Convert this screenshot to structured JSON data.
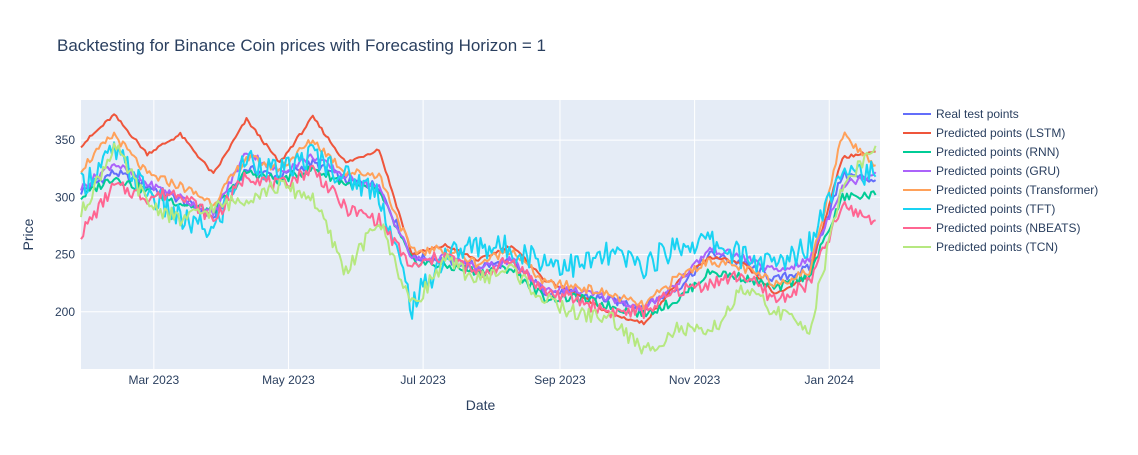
{
  "chart_data": {
    "type": "line",
    "title": "Backtesting for Binance Coin prices with Forecasting Horizon = 1",
    "xlabel": "Date",
    "ylabel": "Price",
    "x_range": [
      "2023-01-27",
      "2024-01-24"
    ],
    "ylim": [
      150,
      385
    ],
    "x_ticks": [
      {
        "date": "2023-03-01",
        "label": "Mar 2023"
      },
      {
        "date": "2023-05-01",
        "label": "May 2023"
      },
      {
        "date": "2023-07-01",
        "label": "Jul 2023"
      },
      {
        "date": "2023-09-01",
        "label": "Sep 2023"
      },
      {
        "date": "2023-11-01",
        "label": "Nov 2023"
      },
      {
        "date": "2024-01-01",
        "label": "Jan 2024"
      }
    ],
    "y_ticks": [
      200,
      250,
      300,
      350
    ],
    "grid": true,
    "legend_position": "right",
    "x": [
      "2023-01-27",
      "2023-02-11",
      "2023-02-26",
      "2023-03-13",
      "2023-03-28",
      "2023-04-12",
      "2023-04-27",
      "2023-05-12",
      "2023-05-27",
      "2023-06-11",
      "2023-06-26",
      "2023-07-11",
      "2023-07-26",
      "2023-08-10",
      "2023-08-25",
      "2023-09-09",
      "2023-09-24",
      "2023-10-09",
      "2023-10-24",
      "2023-11-08",
      "2023-11-23",
      "2023-12-08",
      "2023-12-23",
      "2024-01-07",
      "2024-01-22"
    ],
    "series": [
      {
        "name": "Real test points",
        "color": "#636efa",
        "values": [
          305,
          322,
          310,
          298,
          282,
          325,
          318,
          330,
          315,
          310,
          248,
          245,
          240,
          243,
          218,
          215,
          210,
          205,
          220,
          250,
          242,
          228,
          238,
          320,
          315
        ]
      },
      {
        "name": "Predicted points (LSTM)",
        "color": "#ef553b",
        "values": [
          345,
          372,
          338,
          355,
          320,
          368,
          330,
          370,
          330,
          342,
          250,
          258,
          245,
          258,
          228,
          215,
          198,
          190,
          225,
          248,
          242,
          215,
          232,
          335,
          340
        ]
      },
      {
        "name": "Predicted points (RNN)",
        "color": "#00cc96",
        "values": [
          300,
          318,
          305,
          295,
          288,
          322,
          315,
          325,
          312,
          305,
          244,
          240,
          235,
          238,
          212,
          212,
          205,
          198,
          210,
          235,
          230,
          220,
          232,
          300,
          302
        ]
      },
      {
        "name": "Predicted points (GRU)",
        "color": "#ab63fa",
        "values": [
          308,
          330,
          312,
          300,
          285,
          340,
          322,
          336,
          318,
          308,
          246,
          248,
          238,
          245,
          220,
          218,
          212,
          202,
          225,
          255,
          248,
          235,
          245,
          310,
          322
        ]
      },
      {
        "name": "Predicted points (Transformer)",
        "color": "#ffa15a",
        "values": [
          325,
          355,
          320,
          310,
          295,
          335,
          325,
          350,
          322,
          320,
          252,
          255,
          242,
          255,
          225,
          222,
          215,
          205,
          230,
          245,
          238,
          225,
          235,
          355,
          328
        ]
      },
      {
        "name": "Predicted points (TFT)",
        "color": "#19d3f3",
        "values": [
          310,
          340,
          305,
          280,
          270,
          335,
          320,
          338,
          318,
          305,
          205,
          250,
          258,
          255,
          245,
          240,
          250,
          240,
          258,
          262,
          248,
          240,
          260,
          330,
          318
        ]
      },
      {
        "name": "Predicted points (NBEATS)",
        "color": "#ff6692",
        "values": [
          268,
          310,
          300,
          305,
          280,
          320,
          310,
          325,
          290,
          280,
          238,
          250,
          232,
          245,
          218,
          210,
          200,
          200,
          218,
          225,
          232,
          210,
          225,
          292,
          280
        ]
      },
      {
        "name": "Predicted points (TCN)",
        "color": "#b6e880",
        "values": [
          285,
          345,
          295,
          280,
          290,
          300,
          310,
          300,
          235,
          280,
          205,
          245,
          228,
          238,
          210,
          198,
          195,
          165,
          185,
          180,
          220,
          200,
          185,
          310,
          345
        ]
      }
    ]
  }
}
